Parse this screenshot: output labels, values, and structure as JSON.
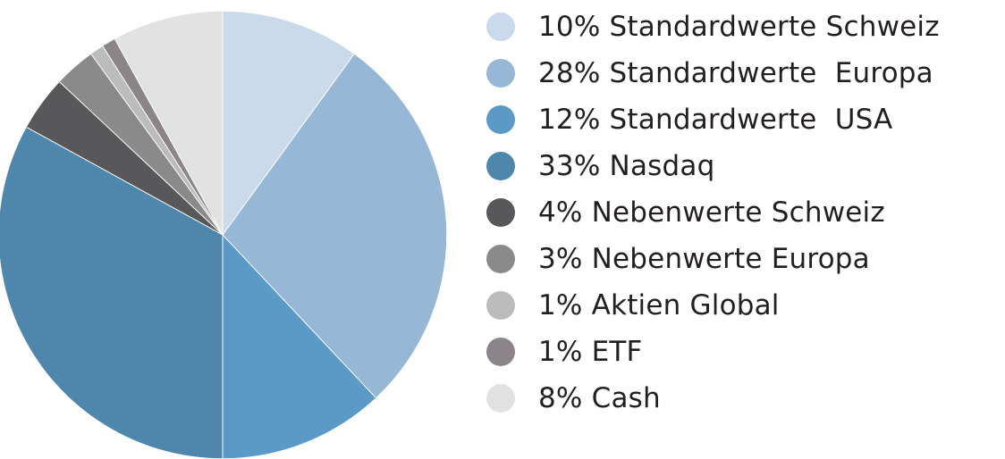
{
  "chart_data": {
    "type": "pie",
    "title": "",
    "slices": [
      {
        "label": "10% Standardwerte Schweiz",
        "name": "Standardwerte Schweiz",
        "value": 10,
        "color": "#cbdaeb"
      },
      {
        "label": "28% Standardwerte  Europa",
        "name": "Standardwerte Europa",
        "value": 28,
        "color": "#96b7d6"
      },
      {
        "label": "12% Standardwerte  USA",
        "name": "Standardwerte USA",
        "value": 12,
        "color": "#5b9ac6"
      },
      {
        "label": "33% Nasdaq",
        "name": "Nasdaq",
        "value": 33,
        "color": "#4f86ab"
      },
      {
        "label": "4% Nebenwerte Schweiz",
        "name": "Nebenwerte Schweiz",
        "value": 4,
        "color": "#58585a"
      },
      {
        "label": "3% Nebenwerte Europa",
        "name": "Nebenwerte Europa",
        "value": 3,
        "color": "#8a8a8a"
      },
      {
        "label": "1% Aktien Global",
        "name": "Aktien Global",
        "value": 1,
        "color": "#bcbcbc"
      },
      {
        "label": "1% ETF",
        "name": "ETF",
        "value": 1,
        "color": "#8b8489"
      },
      {
        "label": "8% Cash",
        "name": "Cash",
        "value": 8,
        "color": "#e2e2e3"
      }
    ],
    "legend_position": "right",
    "start_angle": "12 o'clock",
    "direction": "clockwise"
  }
}
